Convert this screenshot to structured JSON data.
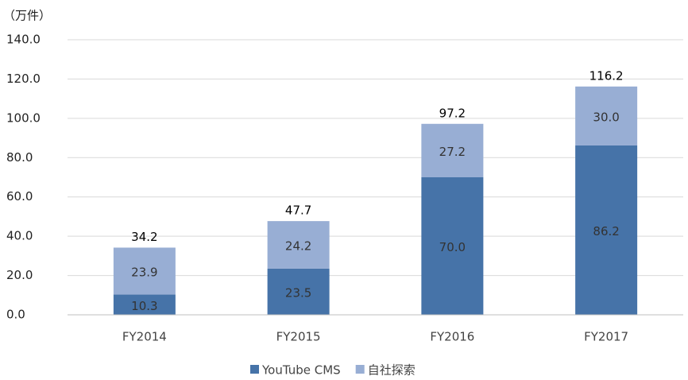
{
  "chart_data": {
    "type": "stacked_bar",
    "unit_label": "（万件）",
    "categories": [
      "FY2014",
      "FY2015",
      "FY2016",
      "FY2017"
    ],
    "series": [
      {
        "name": "YouTube CMS",
        "color": "#4673a8",
        "values": [
          10.3,
          23.5,
          70.0,
          86.2
        ],
        "value_labels": [
          "10.3",
          "23.5",
          "70.0",
          "86.2"
        ]
      },
      {
        "name": "自社探索",
        "color": "#98aed4",
        "values": [
          23.9,
          24.2,
          27.2,
          30.0
        ],
        "value_labels": [
          "23.9",
          "24.2",
          "27.2",
          "30.0"
        ]
      }
    ],
    "totals": [
      34.2,
      47.7,
      97.2,
      116.2
    ],
    "ylim": [
      0,
      140
    ],
    "yticks": [
      {
        "value": 0,
        "label": "0.0"
      },
      {
        "value": 20,
        "label": "20.0"
      },
      {
        "value": 40,
        "label": "40.0"
      },
      {
        "value": 60,
        "label": "60.0"
      },
      {
        "value": 80,
        "label": "80.0"
      },
      {
        "value": 100,
        "label": "100.0"
      },
      {
        "value": 120,
        "label": "120.0"
      },
      {
        "value": 140,
        "label": "140.0"
      }
    ],
    "grid": true,
    "legend": "bottom"
  }
}
